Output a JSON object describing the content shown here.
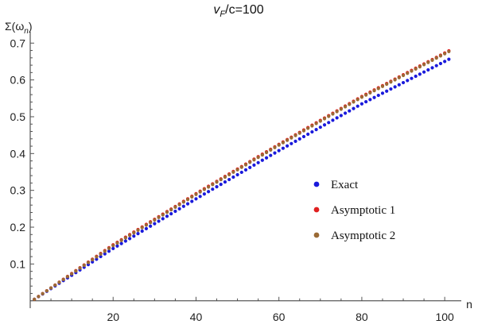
{
  "chart_data": {
    "type": "scatter",
    "title": "v_F/c=100",
    "title_parts": {
      "v": "v",
      "sub": "F",
      "rest": "/c=100"
    },
    "xlabel": "n",
    "ylabel": "Σ(ω_n)",
    "ylabel_parts": {
      "main": "Σ(ω",
      "sub": "n",
      "close": ")"
    },
    "xlim": [
      0,
      104
    ],
    "ylim": [
      -0.02,
      0.72
    ],
    "xticks_major": [
      20,
      40,
      60,
      80,
      100
    ],
    "xtick_labels": [
      "20",
      "40",
      "60",
      "80",
      "100"
    ],
    "yticks_major": [
      0.1,
      0.2,
      0.3,
      0.4,
      0.5,
      0.6,
      0.7
    ],
    "ytick_labels": [
      "0.1",
      "0.2",
      "0.3",
      "0.4",
      "0.5",
      "0.6",
      "0.7"
    ],
    "grid": false,
    "legend_position": "center-right",
    "series": [
      {
        "name": "Exact",
        "color": "#1a1adb",
        "anchors": [
          [
            1,
            0.004
          ],
          [
            20,
            0.142
          ],
          [
            40,
            0.277
          ],
          [
            60,
            0.408
          ],
          [
            80,
            0.535
          ],
          [
            101,
            0.656
          ]
        ]
      },
      {
        "name": "Asymptotic 1",
        "color": "#e02020",
        "anchors": [
          [
            1,
            0.004
          ],
          [
            20,
            0.152
          ],
          [
            40,
            0.291
          ],
          [
            60,
            0.425
          ],
          [
            80,
            0.555
          ],
          [
            101,
            0.679
          ]
        ]
      },
      {
        "name": "Asymptotic 2",
        "color": "#9a6a35",
        "anchors": [
          [
            1,
            0.004
          ],
          [
            20,
            0.15
          ],
          [
            40,
            0.289
          ],
          [
            60,
            0.423
          ],
          [
            80,
            0.553
          ],
          [
            101,
            0.677
          ]
        ]
      }
    ],
    "n_range": [
      1,
      101
    ]
  }
}
